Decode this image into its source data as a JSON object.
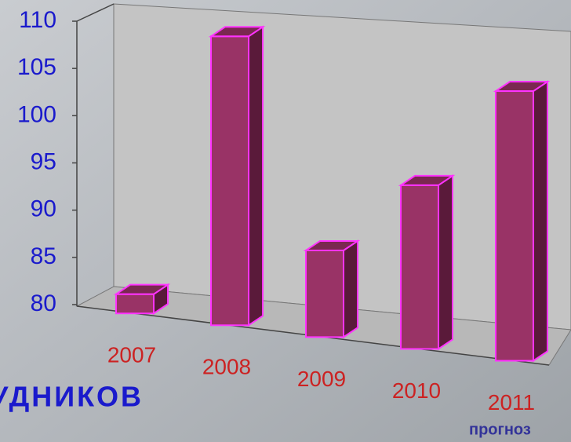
{
  "chart_data": {
    "type": "bar",
    "categories": [
      "2007",
      "2008",
      "2009",
      "2010",
      "2011"
    ],
    "values": [
      82,
      110,
      89,
      97,
      108
    ],
    "color": "#993366",
    "ylim": [
      80,
      110
    ],
    "yticks": [
      80,
      85,
      90,
      95,
      100,
      105,
      110
    ],
    "annotations": [
      "УДНИКОВ",
      "прогноз"
    ]
  }
}
